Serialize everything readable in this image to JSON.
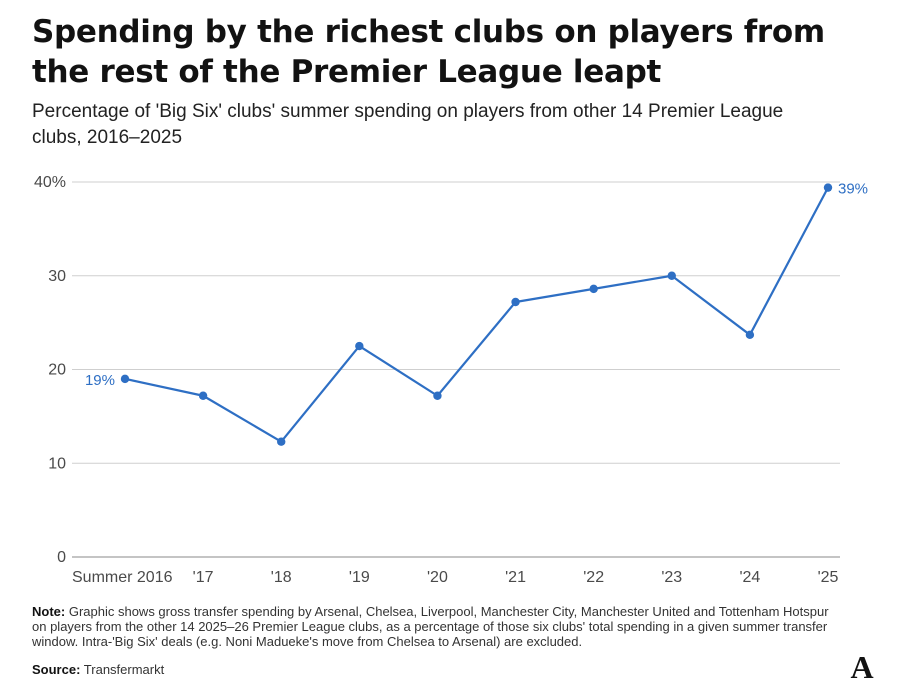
{
  "header": {
    "title": "Spending by the richest clubs on players from the rest of the Premier League leapt",
    "subtitle": "Percentage of 'Big Six' clubs' summer spending on players from other 14 Premier League clubs, 2016–2025"
  },
  "footer": {
    "note_label": "Note:",
    "note_text": "Graphic shows gross transfer spending by Arsenal, Chelsea, Liverpool, Manchester City, Manchester United and Tottenham Hotspur on players from the other 14 2025–26 Premier League clubs, as a percentage of those six clubs' total spending in a given summer transfer window. Intra-'Big Six' deals (e.g. Noni Madueke's move from Chelsea to Arsenal) are excluded.",
    "source_label": "Source:",
    "source_text": "Transfermarkt",
    "logo_text": "A"
  },
  "chart_data": {
    "type": "line",
    "categories": [
      "Summer 2016",
      "'17",
      "'18",
      "'19",
      "'20",
      "'21",
      "'22",
      "'23",
      "'24",
      "'25"
    ],
    "series": [
      {
        "values": [
          19.0,
          17.2,
          12.3,
          22.5,
          17.2,
          27.2,
          28.6,
          30.0,
          23.7,
          39.4
        ]
      }
    ],
    "y_ticks": [
      "0",
      "10",
      "20",
      "30",
      "40%"
    ],
    "y_tick_values": [
      0,
      10,
      20,
      30,
      40
    ],
    "ylim": [
      0,
      40
    ],
    "data_labels": [
      {
        "index": 0,
        "text": "19%"
      },
      {
        "index": 9,
        "text": "39%"
      }
    ],
    "grid": true,
    "line_color": "#2e6fc4",
    "grid_color": "#cfcfcf",
    "baseline_color": "#888888"
  }
}
